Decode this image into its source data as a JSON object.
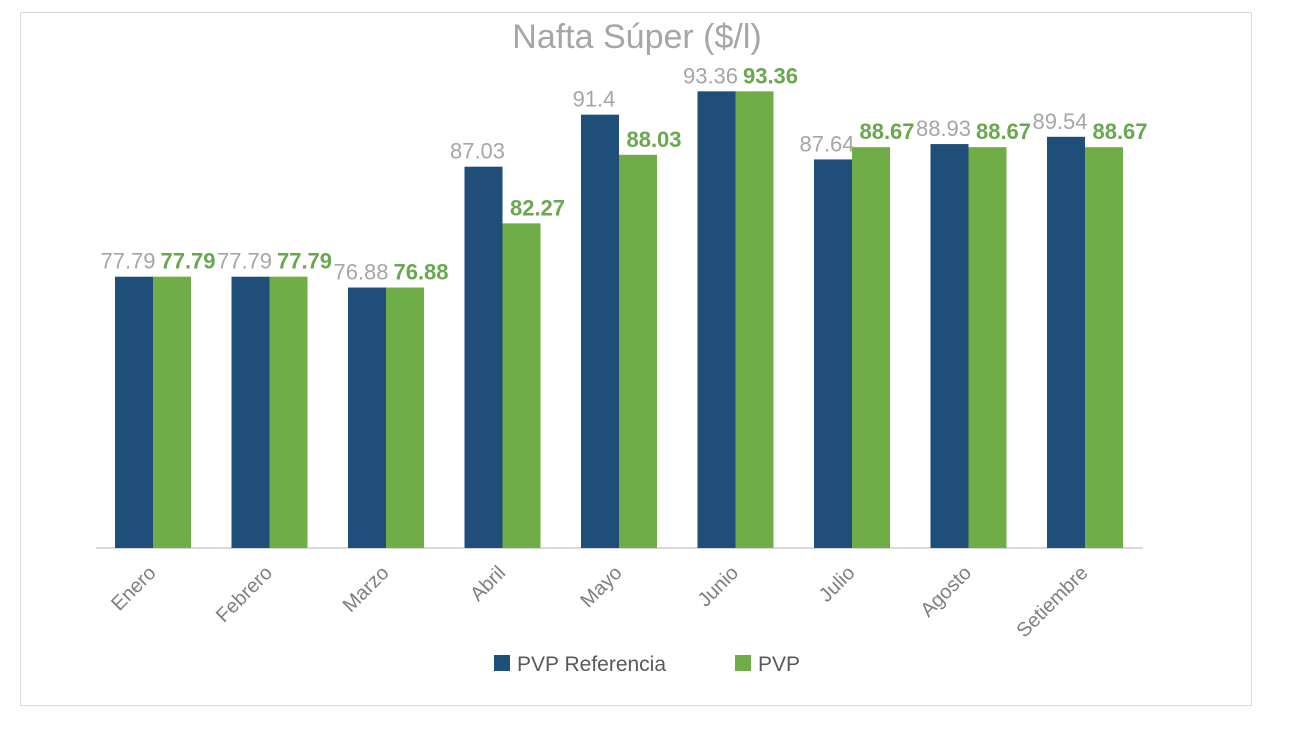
{
  "chart_data": {
    "type": "bar",
    "title": "Nafta Súper ($/l)",
    "categories": [
      "Enero",
      "Febrero",
      "Marzo",
      "Abril",
      "Mayo",
      "Junio",
      "Julio",
      "Agosto",
      "Setiembre"
    ],
    "series": [
      {
        "name": "PVP Referencia",
        "color": "#1f4e79",
        "values": [
          77.79,
          77.79,
          76.88,
          87.03,
          91.4,
          93.36,
          87.64,
          88.93,
          89.54
        ],
        "labels": [
          "77.79",
          "77.79",
          "76.88",
          "87.03",
          "91.4",
          "93.36",
          "87.64",
          "88.93",
          "89.54"
        ]
      },
      {
        "name": "PVP",
        "color": "#70ad47",
        "values": [
          77.79,
          77.79,
          76.88,
          82.27,
          88.03,
          93.36,
          88.67,
          88.67,
          88.67
        ],
        "labels": [
          "77.79",
          "77.79",
          "76.88",
          "82.27",
          "88.03",
          "93.36",
          "88.67",
          "88.67",
          "88.67"
        ]
      }
    ],
    "legend_position": "bottom",
    "grid": false,
    "ylim": [
      55,
      97
    ]
  }
}
